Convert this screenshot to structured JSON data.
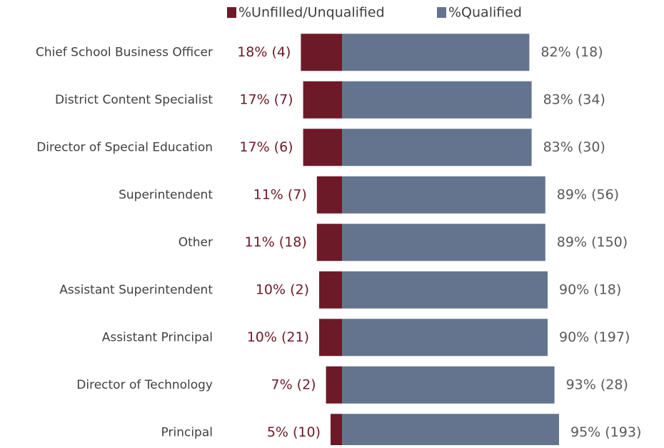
{
  "chart_data": {
    "type": "diverging-bar",
    "categories": [
      "Chief School Business Officer",
      "District Content Specialist",
      "Director of Special Education",
      "Superintendent",
      "Other",
      "Assistant Superintendent",
      "Assistant Principal",
      "Director of Technology",
      "Principal"
    ],
    "series": [
      {
        "name": "%Unfilled/Unqualified",
        "color": "#6d1a28",
        "values": [
          18,
          17,
          17,
          11,
          11,
          10,
          10,
          7,
          5
        ],
        "value_labels": [
          "18% (4)",
          "17% (7)",
          "17% (6)",
          "11% (7)",
          "11% (18)",
          "10% (2)",
          "10% (21)",
          "7% (2)",
          "5% (10)"
        ]
      },
      {
        "name": "%Qualified",
        "color": "#64748f",
        "values": [
          82,
          83,
          83,
          89,
          89,
          90,
          90,
          93,
          95
        ],
        "value_labels": [
          "82% (18)",
          "83% (34)",
          "83% (30)",
          "89% (56)",
          "89% (150)",
          "90% (18)",
          "90% (197)",
          "93% (28)",
          "95% (193)"
        ]
      }
    ],
    "legend": "top"
  }
}
